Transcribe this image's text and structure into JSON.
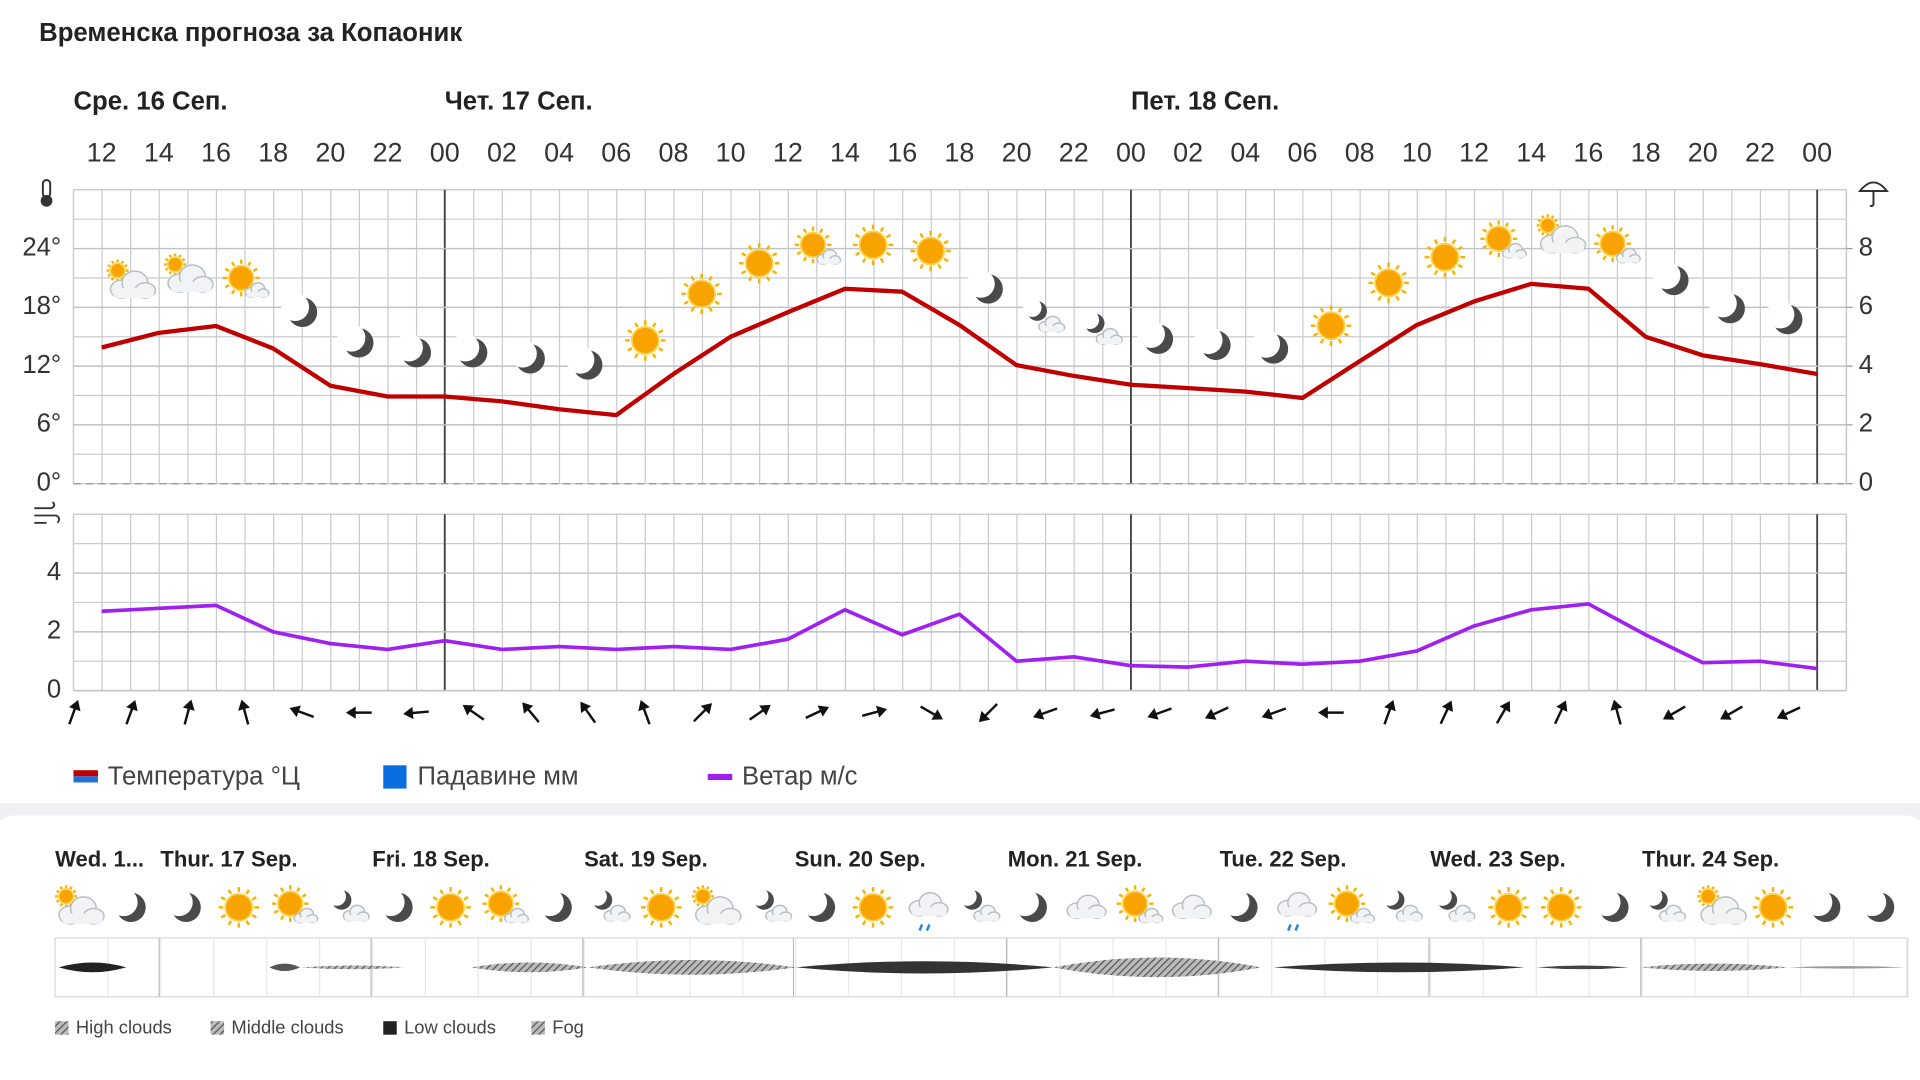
{
  "title": "Временска прогноза за Копаоник",
  "days": [
    "Сре. 16 Сеп.",
    "Чет. 17 Сеп.",
    "Пет. 18 Сеп."
  ],
  "chart_data": [
    {
      "type": "line",
      "categories": [
        "12",
        "14",
        "16",
        "18",
        "20",
        "22",
        "00",
        "02",
        "04",
        "06",
        "08",
        "10",
        "12",
        "14",
        "16",
        "18",
        "20",
        "22",
        "00",
        "02",
        "04",
        "06",
        "08",
        "10",
        "12",
        "14",
        "16",
        "18",
        "20",
        "22",
        "00"
      ],
      "series": [
        {
          "name": "Температура °Ц",
          "color": "#c00000",
          "values": [
            13.9,
            15.4,
            16.1,
            13.8,
            10,
            8.9,
            8.9,
            8.4,
            7.6,
            7.0,
            11.2,
            15,
            17.5,
            19.9,
            19.6,
            16.2,
            12.1,
            11,
            10.1,
            9.75,
            9.4,
            8.75,
            12.5,
            16.2,
            18.6,
            20.4,
            19.9,
            15,
            13.1,
            12.2,
            11.2
          ]
        },
        {
          "name": "Падавине мм",
          "color": "#0a6ee0",
          "axis": "y2",
          "values": [
            0,
            0,
            0,
            0,
            0,
            0,
            0,
            0,
            0,
            0,
            0,
            0,
            0,
            0,
            0,
            0,
            0,
            0,
            0,
            0,
            0,
            0,
            0,
            0,
            0,
            0,
            0,
            0,
            0,
            0,
            0
          ]
        }
      ],
      "ylim": [
        0,
        30
      ],
      "yticks": [
        {
          "value": 0,
          "label": "0°"
        },
        {
          "value": 6,
          "label": "6°"
        },
        {
          "value": 12,
          "label": "12°"
        },
        {
          "value": 18,
          "label": "18°"
        },
        {
          "value": 24,
          "label": "24°"
        }
      ],
      "y2lim": [
        0,
        10
      ],
      "y2ticks": [
        0,
        2,
        4,
        6,
        8
      ],
      "grid": true
    },
    {
      "type": "line",
      "categories": [
        "12",
        "14",
        "16",
        "18",
        "20",
        "22",
        "00",
        "02",
        "04",
        "06",
        "08",
        "10",
        "12",
        "14",
        "16",
        "18",
        "20",
        "22",
        "00",
        "02",
        "04",
        "06",
        "08",
        "10",
        "12",
        "14",
        "16",
        "18",
        "20",
        "22",
        "00"
      ],
      "series": [
        {
          "name": "Ветар м/с",
          "color": "#a020f0",
          "values": [
            2.7,
            2.8,
            2.9,
            2.0,
            1.6,
            1.4,
            1.7,
            1.4,
            1.5,
            1.4,
            1.5,
            1.4,
            1.75,
            2.75,
            1.9,
            2.6,
            1.0,
            1.15,
            0.85,
            0.8,
            1.0,
            0.9,
            1.0,
            1.35,
            2.2,
            2.75,
            2.95,
            1.9,
            0.95,
            1.0,
            0.75
          ]
        }
      ],
      "wind_direction": [
        20,
        20,
        15,
        345,
        290,
        270,
        265,
        305,
        320,
        325,
        340,
        45,
        55,
        65,
        75,
        120,
        225,
        250,
        255,
        250,
        245,
        250,
        270,
        20,
        25,
        30,
        25,
        345,
        240,
        240,
        245
      ],
      "ylim": [
        0,
        6
      ],
      "yticks": [
        0,
        2,
        4
      ],
      "grid": true
    }
  ],
  "overview": {
    "days": [
      "Wed. 1...",
      "Thur. 17 Sep.",
      "Fri. 18 Sep.",
      "Sat. 19 Sep.",
      "Sun. 20 Sep.",
      "Mon. 21 Sep.",
      "Tue. 22 Sep.",
      "Wed. 23 Sep.",
      "Thur. 24 Sep."
    ],
    "cloud_legend": [
      "High clouds",
      "Middle clouds",
      "Low clouds",
      "Fog"
    ]
  }
}
